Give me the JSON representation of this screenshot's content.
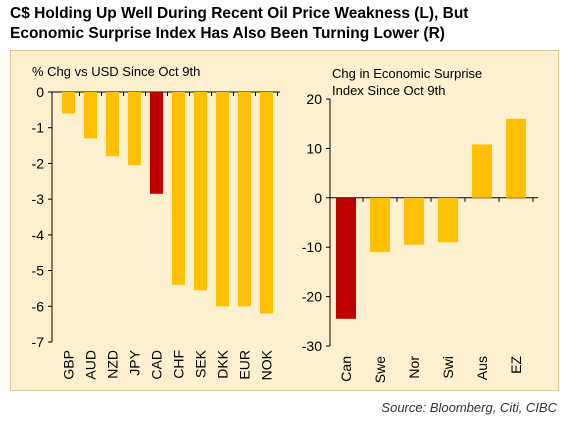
{
  "title_line1": "C$ Holding Up Well During Recent Oil Price Weakness (L), But",
  "title_line2": "Economic Surprise Index Has Also Been Turning Lower (R)",
  "source": "Source: Bloomberg, Citi, CIBC",
  "colors": {
    "bar": "#ffc000",
    "highlight": "#c00000",
    "frame": "#fdf0cf"
  },
  "chart_data": [
    {
      "type": "bar",
      "title": "% Chg vs USD Since Oct 9th",
      "categories": [
        "GBP",
        "AUD",
        "NZD",
        "JPY",
        "CAD",
        "CHF",
        "SEK",
        "DKK",
        "EUR",
        "NOK"
      ],
      "values": [
        -0.6,
        -1.3,
        -1.8,
        -2.05,
        -2.85,
        -5.4,
        -5.55,
        -6.0,
        -6.0,
        -6.2
      ],
      "highlight": "CAD",
      "ylim": [
        -7,
        0
      ],
      "yticks": [
        0,
        -1,
        -2,
        -3,
        -4,
        -5,
        -6,
        -7
      ],
      "grid": false
    },
    {
      "type": "bar",
      "title_lines": [
        "Chg in Economic Surprise",
        "Index Since Oct 9th"
      ],
      "categories": [
        "Can",
        "Swe",
        "Nor",
        "Swi",
        "Aus",
        "EZ"
      ],
      "values": [
        -24.5,
        -11.0,
        -9.5,
        -9.0,
        10.8,
        16.0
      ],
      "highlight": "Can",
      "ylim": [
        -30,
        20
      ],
      "yticks": [
        20,
        10,
        0,
        -10,
        -20,
        -30
      ],
      "grid": false
    }
  ]
}
